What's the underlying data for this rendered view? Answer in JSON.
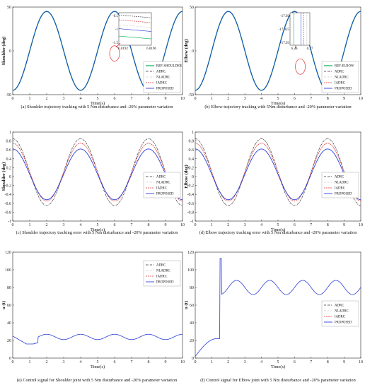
{
  "figure": {
    "captions": [
      "(a) Shoulder trajectory tracking with 5 Nm disturbance and -20% parameter variation",
      "(b) Elbow trajectory tracking with 5Nm disturbance and -20% parameter variation",
      "(c) Shoulder trajectory tracking error with 5 Nm disturbance and -20% parameter variation",
      "(d) Elbow trajectory tracking error with 5 Nm disturbance and -20% parameter variation",
      "(e) Control signal for Shoulder joint with 5 Nm disturbance and -20% parameter variation",
      "(f) Control signal for Elbow joint with 5 Nm disturbance and -20% parameter variation"
    ]
  },
  "colors": {
    "ref": "#00b050",
    "adrc": "#333333",
    "nladrc": "#c0c0c0",
    "iadrc": "#e03030",
    "proposed": "#2b3ed8",
    "axis": "#222222"
  },
  "chart_data": [
    {
      "id": "a",
      "type": "line",
      "ylabel": "Shoulder (deg)",
      "xlabel": "Time(s)",
      "xlim": [
        0,
        10
      ],
      "ylim": [
        -50,
        50
      ],
      "xticks": [
        0,
        1,
        2,
        3,
        4,
        5,
        6,
        7,
        8,
        9,
        10
      ],
      "yticks": [
        -50,
        0,
        50
      ],
      "legend_position": "bottom-right",
      "legend": [
        "REF-SHOULDER",
        "ADRC",
        "NLADRC",
        "IADRC",
        "PROPOSED"
      ],
      "signal": {
        "kind": "sine",
        "amplitude": 45,
        "period_s": 4,
        "phase_s": 1,
        "offset": 0
      },
      "inset": {
        "yticks": [
          "-0.5",
          "-1",
          "-1.5"
        ],
        "xticks": [
          "6.0192",
          "6.0196"
        ]
      }
    },
    {
      "id": "b",
      "type": "line",
      "ylabel": "Elbow (deg)",
      "xlabel": "Time(s)",
      "xlim": [
        0,
        10
      ],
      "ylim": [
        -50,
        50
      ],
      "xticks": [
        0,
        1,
        2,
        3,
        4,
        5,
        6,
        7,
        8,
        9,
        10
      ],
      "yticks": [
        -50,
        0,
        50
      ],
      "legend_position": "bottom-right",
      "legend": [
        "REF-ELBOW",
        "ADRC",
        "NLADRC",
        "IADRC",
        "PROPOSED"
      ],
      "signal": {
        "kind": "sine",
        "amplitude": 45,
        "period_s": 4,
        "phase_s": 1,
        "offset": 0
      },
      "inset": {
        "yticks": [
          "-17.92",
          "-17.925",
          "-17.93"
        ],
        "xticks": [
          "6.26",
          "6.27"
        ]
      }
    },
    {
      "id": "c",
      "type": "line",
      "ylabel": "Shoulder (deg)",
      "xlabel": "Time(s)",
      "xlim": [
        0,
        10
      ],
      "ylim": [
        -1,
        1
      ],
      "xticks": [
        0,
        1,
        2,
        3,
        4,
        5,
        6,
        7,
        8,
        9,
        10
      ],
      "yticks": [
        -1,
        -0.8,
        -0.6,
        -0.4,
        -0.2,
        0,
        0.2,
        0.4,
        0.6,
        0.8,
        1
      ],
      "legend_position": "right",
      "legend": [
        "ADRC",
        "NLADRC",
        "IADRC",
        "PROPOSED"
      ],
      "series": [
        {
          "name": "ADRC",
          "offset": 0.1,
          "amplitude": 0.75,
          "period_s": 4,
          "phase_s": 3
        },
        {
          "name": "NLADRC",
          "offset": 0.1,
          "amplitude": 0.65,
          "period_s": 4,
          "phase_s": 3
        },
        {
          "name": "IADRC",
          "offset": 0.1,
          "amplitude": 0.65,
          "period_s": 4,
          "phase_s": 3
        },
        {
          "name": "PROPOSED",
          "offset": 0.05,
          "amplitude": 0.57,
          "period_s": 4,
          "phase_s": 3
        }
      ]
    },
    {
      "id": "d",
      "type": "line",
      "ylabel": "Elbow (deg)",
      "xlabel": "Time(s)",
      "xlim": [
        0,
        10
      ],
      "ylim": [
        -1,
        1
      ],
      "xticks": [
        0,
        1,
        2,
        3,
        4,
        5,
        6,
        7,
        8,
        9,
        10
      ],
      "yticks": [
        -1,
        -0.8,
        -0.6,
        -0.4,
        -0.2,
        0,
        0.2,
        0.4,
        0.6,
        0.8,
        1
      ],
      "legend_position": "right",
      "legend": [
        "ADRC",
        "NLADRC",
        "IADRC",
        "PROPOSED"
      ],
      "series": [
        {
          "name": "ADRC",
          "offset": 0.1,
          "amplitude": 0.75,
          "period_s": 4,
          "phase_s": 3
        },
        {
          "name": "NLADRC",
          "offset": 0.1,
          "amplitude": 0.65,
          "period_s": 4,
          "phase_s": 3
        },
        {
          "name": "IADRC",
          "offset": 0.1,
          "amplitude": 0.65,
          "period_s": 4,
          "phase_s": 3
        },
        {
          "name": "PROPOSED",
          "offset": 0.05,
          "amplitude": 0.57,
          "period_s": 4,
          "phase_s": 3
        }
      ]
    },
    {
      "id": "e",
      "type": "line",
      "ylabel": "u (t)",
      "xlabel": "Time(s)",
      "xlim": [
        0,
        10
      ],
      "ylim": [
        0,
        120
      ],
      "xticks": [
        0,
        1,
        2,
        3,
        4,
        5,
        6,
        7,
        8,
        9,
        10
      ],
      "yticks": [
        0,
        20,
        40,
        60,
        80,
        100,
        120
      ],
      "legend_position": "top-right",
      "legend": [
        "ADRC",
        "NLADRC",
        "IADRC",
        "PROPOSED"
      ],
      "signal": {
        "kind": "piecewise",
        "start_value": 25,
        "dip_value": 16,
        "jump_time_s": 1.5,
        "base": 24,
        "amplitude": 3,
        "period_s": 2
      }
    },
    {
      "id": "f",
      "type": "line",
      "ylabel": "u (t)",
      "xlabel": "Time(s)",
      "xlim": [
        0,
        10
      ],
      "ylim": [
        0,
        120
      ],
      "xticks": [
        0,
        1,
        2,
        3,
        4,
        5,
        6,
        7,
        8,
        9,
        10
      ],
      "yticks": [
        0,
        20,
        40,
        60,
        80,
        100,
        120
      ],
      "legend_position": "right",
      "legend": [
        "ADRC",
        "NLADRC",
        "IADRC",
        "PROPOSED"
      ],
      "signal": {
        "kind": "piecewise",
        "rise_to": 22,
        "spike_time_s": 1.55,
        "spike_value": 113,
        "base": 80,
        "amplitude": 8,
        "period_s": 2
      }
    }
  ]
}
